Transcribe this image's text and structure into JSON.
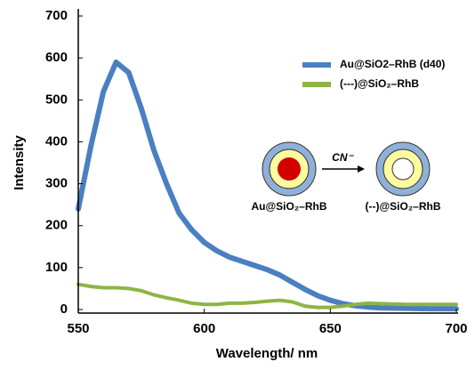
{
  "chart_data": {
    "type": "line",
    "x_label": "Wavelength/ nm",
    "y_label": "Intensity",
    "x": [
      550,
      555,
      560,
      565,
      570,
      575,
      580,
      585,
      590,
      595,
      600,
      605,
      610,
      615,
      620,
      625,
      630,
      635,
      640,
      645,
      650,
      655,
      660,
      665,
      670,
      680,
      690,
      700
    ],
    "series": [
      {
        "name": "Au@SiO2–RhB (d40)",
        "color": "#4a7fc1",
        "values": [
          240,
          390,
          520,
          590,
          565,
          480,
          380,
          300,
          230,
          190,
          160,
          140,
          125,
          115,
          105,
          95,
          82,
          65,
          48,
          33,
          22,
          14,
          9,
          6,
          4,
          3,
          2,
          2
        ]
      },
      {
        "name": "(---)@SiO₂–RhB",
        "color": "#8db544",
        "values": [
          60,
          55,
          52,
          52,
          50,
          45,
          35,
          28,
          22,
          15,
          12,
          12,
          15,
          15,
          17,
          20,
          22,
          18,
          8,
          5,
          5,
          8,
          12,
          15,
          14,
          12,
          12,
          12
        ]
      }
    ],
    "xlim": [
      550,
      700
    ],
    "xticks": [
      550,
      600,
      650,
      700
    ],
    "ylim": [
      0,
      700
    ],
    "yticks": [
      0,
      100,
      200,
      300,
      400,
      500,
      600,
      700
    ],
    "legend": "upper right",
    "annotations": {
      "arrow_label": "CN⁻",
      "left_label": "Au@SiO₂–RhB",
      "right_label": "(--)@SiO₂–RhB"
    }
  }
}
